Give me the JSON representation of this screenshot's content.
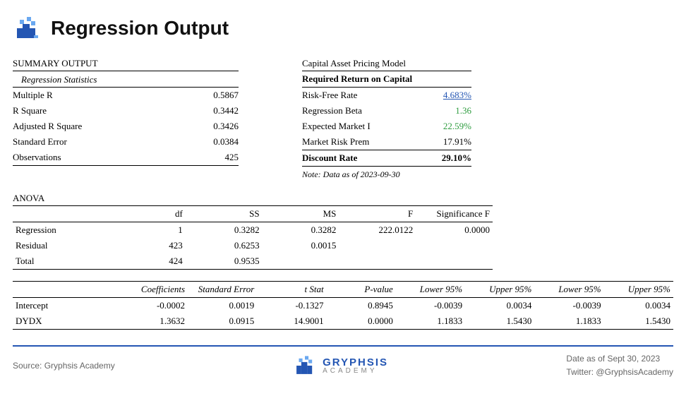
{
  "title": "Regression Output",
  "summary": {
    "heading": "SUMMARY OUTPUT",
    "subheading": "Regression Statistics",
    "rows": [
      {
        "label": "Multiple R",
        "value": "0.5867"
      },
      {
        "label": "R Square",
        "value": "0.3442"
      },
      {
        "label": "Adjusted R Square",
        "value": "0.3426"
      },
      {
        "label": "Standard Error",
        "value": "0.0384"
      },
      {
        "label": "Observations",
        "value": "425"
      }
    ]
  },
  "capm": {
    "heading": "Capital Asset Pricing Model",
    "subheading": "Required Return on Capital",
    "rows": [
      {
        "label": "Risk-Free Rate",
        "value": "4.683%",
        "style": "link"
      },
      {
        "label": "Regression Beta",
        "value": "1.36",
        "style": "green"
      },
      {
        "label": "Expected Market I",
        "value": "22.59%",
        "style": "green"
      },
      {
        "label": "Market Risk Prem",
        "value": "17.91%",
        "style": ""
      }
    ],
    "discount_label": "Discount Rate",
    "discount_value": "29.10%",
    "note": "Note: Data as of 2023-09-30"
  },
  "anova": {
    "heading": "ANOVA",
    "columns": [
      "",
      "df",
      "SS",
      "MS",
      "F",
      "Significance F"
    ],
    "rows": [
      [
        "Regression",
        "1",
        "0.3282",
        "0.3282",
        "222.0122",
        "0.0000"
      ],
      [
        "Residual",
        "423",
        "0.6253",
        "0.0015",
        "",
        ""
      ],
      [
        "Total",
        "424",
        "0.9535",
        "",
        "",
        ""
      ]
    ]
  },
  "coef": {
    "columns": [
      "",
      "Coefficients",
      "Standard Error",
      "t Stat",
      "P-value",
      "Lower 95%",
      "Upper 95%",
      "Lower 95%",
      "Upper 95%"
    ],
    "rows": [
      [
        "Intercept",
        "-0.0002",
        "0.0019",
        "-0.1327",
        "0.8945",
        "-0.0039",
        "0.0034",
        "-0.0039",
        "0.0034"
      ],
      [
        "DYDX",
        "1.3632",
        "0.0915",
        "14.9001",
        "0.0000",
        "1.1833",
        "1.5430",
        "1.1833",
        "1.5430"
      ]
    ]
  },
  "footer": {
    "source": "Source: Gryphsis Academy",
    "brand1": "GRYPHSIS",
    "brand2": "ACADEMY",
    "date": "Date as of Sept 30, 2023",
    "twitter": "Twitter: @GryphsisAcademy"
  },
  "colors": {
    "accent_blue": "#2456b3",
    "green": "#2e9c3f",
    "text_grey": "#666666"
  }
}
